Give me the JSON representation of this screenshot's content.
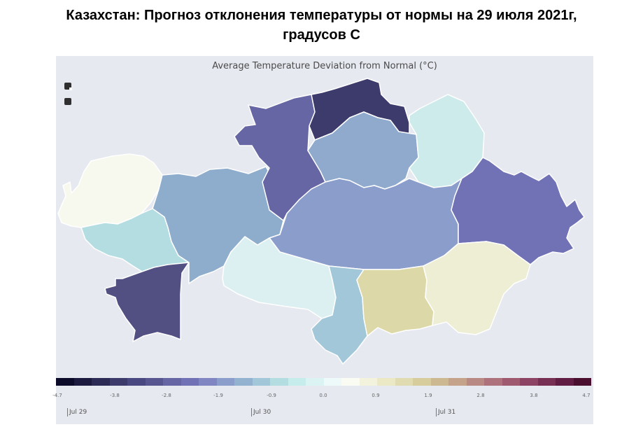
{
  "page": {
    "title_line1": "Казахстан: Прогноз отклонения температуры от нормы на 29 июля 2021г,",
    "title_line2": "градусов С"
  },
  "map": {
    "title": "Average Temperature Deviation from Normal (°C)",
    "zoom_in_icon": "zoom-in-icon",
    "zoom_out_icon": "zoom-out-icon",
    "regions": [
      {
        "key": "west_kazakhstan",
        "value": -0.1,
        "color": "#f8f9ee"
      },
      {
        "key": "atyrau",
        "value": -1.2,
        "color": "#b3dde1"
      },
      {
        "key": "mangystau",
        "value": -3.9,
        "color": "#524f82"
      },
      {
        "key": "aktobe",
        "value": -2.0,
        "color": "#8eaccc"
      },
      {
        "key": "kostanay",
        "value": -3.4,
        "color": "#6666a4"
      },
      {
        "key": "north_kazakhstan",
        "value": -4.3,
        "color": "#3d3b6b"
      },
      {
        "key": "akmola",
        "value": -2.1,
        "color": "#8faacc"
      },
      {
        "key": "pavlodar",
        "value": -0.7,
        "color": "#cdebeb"
      },
      {
        "key": "karaganda",
        "value": -2.3,
        "color": "#8b9ecb"
      },
      {
        "key": "east_kazakhstan",
        "value": -3.1,
        "color": "#7172b5"
      },
      {
        "key": "kyzylorda",
        "value": -0.6,
        "color": "#dcf0f2"
      },
      {
        "key": "turkistan",
        "value": -1.4,
        "color": "#a1c7d9"
      },
      {
        "key": "zhambyl",
        "value": 1.2,
        "color": "#ddd8a7"
      },
      {
        "key": "almaty",
        "value": 0.6,
        "color": "#eeeed4"
      }
    ]
  },
  "colorbar": {
    "ticks": [
      "-4.7",
      "-3.8",
      "-2.8",
      "-1.9",
      "-0.9",
      "0.0",
      "0.9",
      "1.9",
      "2.8",
      "3.8",
      "4.7"
    ],
    "min": -4.7,
    "max": 4.7,
    "colors": [
      "#0d0b2a",
      "#1c1b3f",
      "#2c2b55",
      "#3d3b6b",
      "#4a4880",
      "#585691",
      "#6666a4",
      "#7172b5",
      "#7f86c2",
      "#8b9ecb",
      "#93b2d0",
      "#a1c7d9",
      "#b3dde1",
      "#c7ecec",
      "#dcf3f4",
      "#eefafa",
      "#fafcf4",
      "#f3f2dc",
      "#ebe8c6",
      "#e1dbb1",
      "#d7cd9c",
      "#cdb991",
      "#c4a38a",
      "#b98a83",
      "#ad727b",
      "#9f5a70",
      "#8d4363",
      "#782f54",
      "#611d43",
      "#4a0f2f"
    ]
  },
  "timeline": {
    "dates": [
      "Jul 29",
      "Jul 30",
      "Jul 31"
    ]
  }
}
